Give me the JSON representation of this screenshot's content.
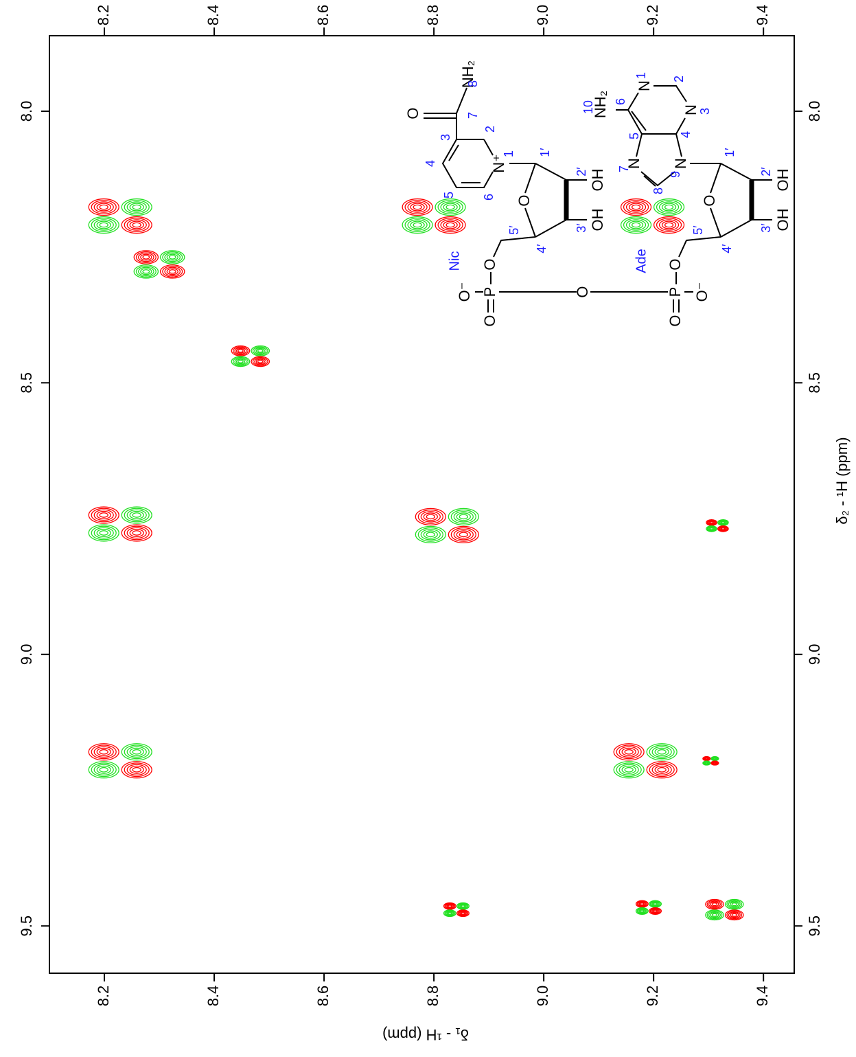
{
  "chart_data": {
    "type": "contour",
    "x_label": "δ₁ - ¹H  (ppm)",
    "y_label": "δ₂ - ¹H  (ppm)",
    "xlim": [
      8.1,
      9.456
    ],
    "ylim": [
      7.861,
      9.587
    ],
    "xticks": [
      8.2,
      8.4,
      8.6,
      8.8,
      {
        "value": 9,
        "label": "9.0"
      },
      9.2,
      9.4
    ],
    "yticks": [
      {
        "value": 8,
        "label": "8.0"
      },
      8.5,
      {
        "value": 9,
        "label": "9.0"
      },
      9.5
    ],
    "colors": {
      "positive": "#ff0000",
      "negative": "#22e022"
    },
    "peaks": {
      "x": [
        8.229,
        8.3,
        8.466,
        8.229,
        8.229,
        8.8,
        9.198,
        8.824,
        9.316,
        9.185,
        9.304,
        8.841,
        9.191,
        9.329
      ],
      "y": [
        8.193,
        8.282,
        8.451,
        8.76,
        9.196,
        8.193,
        8.193,
        8.763,
        8.763,
        9.196,
        9.196,
        9.47,
        9.466,
        9.47
      ]
    }
  },
  "structure": {
    "atoms": [
      "N⁺",
      "O",
      "NH₂",
      "O",
      "OH",
      "OH",
      "O",
      "P",
      "O⁻",
      "O",
      "O",
      "N",
      "N",
      "N",
      "N",
      "NH₂",
      "O",
      "OH",
      "OH",
      "O",
      "P",
      "O⁻",
      "O"
    ],
    "residues": [
      "Nic",
      "Ade"
    ],
    "numbers": [
      "1",
      "2",
      "3",
      "4",
      "5",
      "6",
      "7",
      "8",
      "1′",
      "2′",
      "3′",
      "4′",
      "5′",
      "1",
      "2",
      "3",
      "4",
      "5",
      "6",
      "7",
      "8",
      "9",
      "10",
      "1′",
      "2′",
      "3′",
      "4′",
      "5′"
    ]
  }
}
